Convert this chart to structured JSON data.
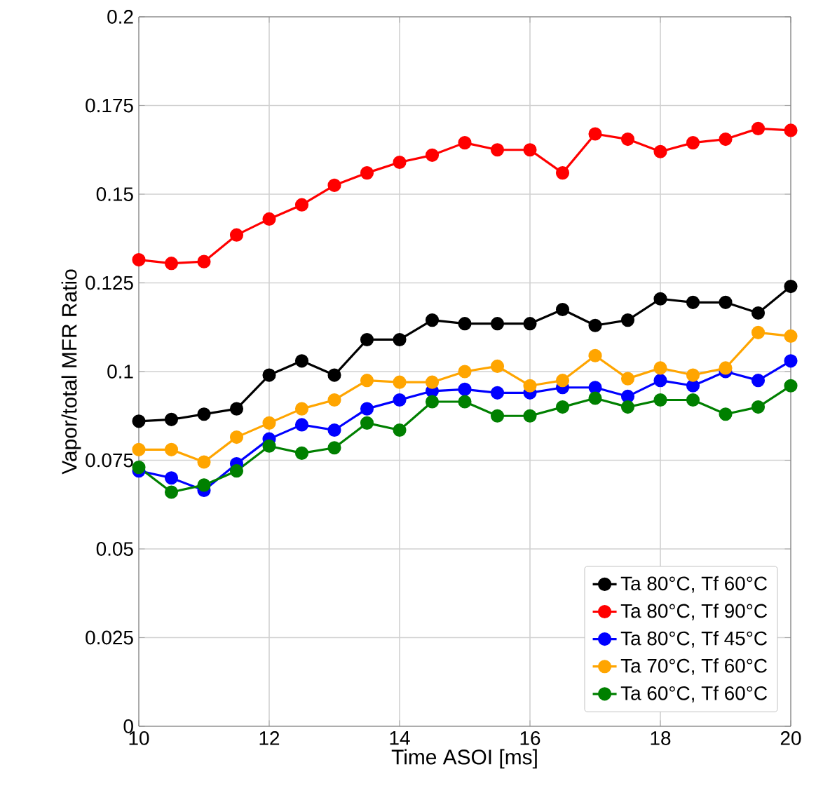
{
  "chart_data": {
    "type": "line",
    "xlabel": "Time ASOI [ms]",
    "ylabel": "Vapor/total MFR Ratio",
    "x": [
      10,
      10.5,
      11,
      11.5,
      12,
      12.5,
      13,
      13.5,
      14,
      14.5,
      15,
      15.5,
      16,
      16.5,
      17,
      17.5,
      18,
      18.5,
      19,
      19.5,
      20
    ],
    "xlim": [
      10,
      20
    ],
    "ylim": [
      0,
      0.2
    ],
    "xticks": [
      10,
      12,
      14,
      16,
      18,
      20
    ],
    "yticks": [
      0,
      0.025,
      0.05,
      0.075,
      0.1,
      0.125,
      0.15,
      0.175,
      0.2
    ],
    "grid": true,
    "legend": "bottom right",
    "marker": "circle",
    "line_style": "solid",
    "series": [
      {
        "name": "Ta 80°C, Tf 60°C",
        "color": "#000000",
        "values": [
          0.086,
          0.0865,
          0.088,
          0.0895,
          0.099,
          0.103,
          0.099,
          0.109,
          0.109,
          0.1145,
          0.1135,
          0.1135,
          0.1135,
          0.1175,
          0.113,
          0.1145,
          0.1205,
          0.1195,
          0.1195,
          0.1165,
          0.124
        ]
      },
      {
        "name": "Ta 80°C, Tf 90°C",
        "color": "#ff0000",
        "values": [
          0.1315,
          0.1305,
          0.131,
          0.1385,
          0.143,
          0.147,
          0.1525,
          0.156,
          0.159,
          0.161,
          0.1645,
          0.1625,
          0.1625,
          0.156,
          0.167,
          0.1655,
          0.162,
          0.1645,
          0.1655,
          0.1685,
          0.168
        ]
      },
      {
        "name": "Ta 80°C, Tf 45°C",
        "color": "#0000ff",
        "values": [
          0.072,
          0.07,
          0.0665,
          0.074,
          0.081,
          0.085,
          0.0835,
          0.0895,
          0.092,
          0.0945,
          0.095,
          0.094,
          0.094,
          0.0955,
          0.0955,
          0.093,
          0.0975,
          0.096,
          0.1,
          0.0975,
          0.103
        ]
      },
      {
        "name": "Ta 70°C, Tf 60°C",
        "color": "#ffa500",
        "values": [
          0.078,
          0.078,
          0.0745,
          0.0815,
          0.0855,
          0.0895,
          0.092,
          0.0975,
          0.097,
          0.097,
          0.1,
          0.1015,
          0.096,
          0.0975,
          0.1045,
          0.098,
          0.101,
          0.099,
          0.101,
          0.111,
          0.11
        ]
      },
      {
        "name": "Ta 60°C, Tf 60°C",
        "color": "#008000",
        "values": [
          0.073,
          0.066,
          0.068,
          0.072,
          0.079,
          0.077,
          0.0785,
          0.0855,
          0.0835,
          0.0915,
          0.0915,
          0.0875,
          0.0875,
          0.09,
          0.0925,
          0.09,
          0.092,
          0.092,
          0.088,
          0.09,
          0.096
        ]
      }
    ]
  }
}
